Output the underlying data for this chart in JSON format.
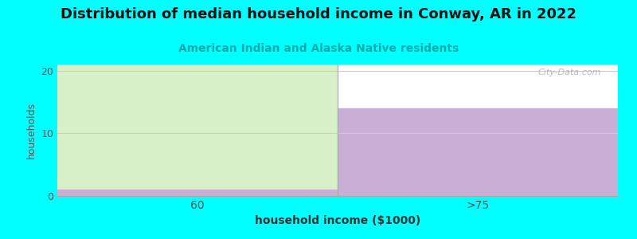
{
  "title": "Distribution of median household income in Conway, AR in 2022",
  "subtitle": "American Indian and Alaska Native residents",
  "xlabel": "household income ($1000)",
  "ylabel": "households",
  "categories": [
    "60",
    ">75"
  ],
  "values": [
    1,
    14
  ],
  "bar_colors": [
    "#d8f0c8",
    "#c9aed6"
  ],
  "bar_bottom_color": "#c9aed6",
  "ylim": [
    0,
    21
  ],
  "yticks": [
    0,
    10,
    20
  ],
  "background_color": "#00ffff",
  "plot_bg_color": "#ffffff",
  "title_fontsize": 13,
  "subtitle_fontsize": 10,
  "subtitle_color": "#00aaaa",
  "watermark": "City-Data.com"
}
